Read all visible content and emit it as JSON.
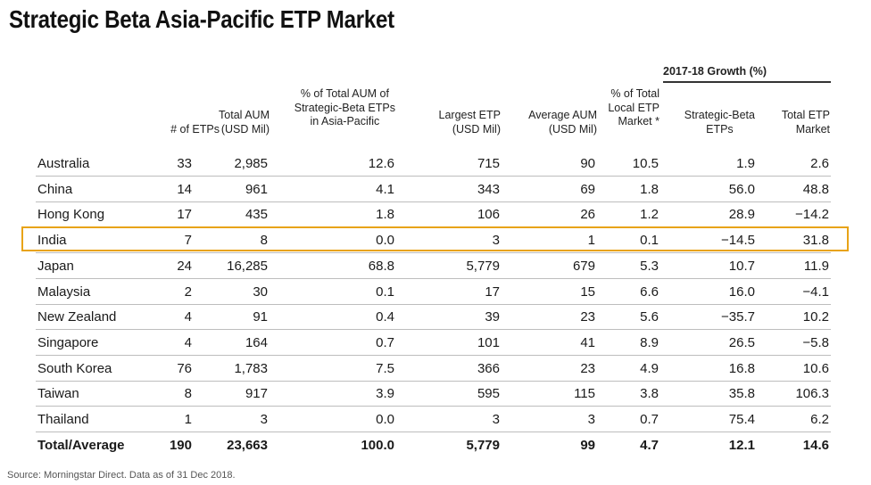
{
  "chart_data": {
    "type": "table",
    "title": "Strategic Beta Asia-Pacific ETP Market",
    "group_header": "2017-18 Growth (%)",
    "columns": [
      "",
      "# of ETPs",
      "Total AUM\n(USD Mil)",
      "% of Total AUM of\nStrategic-Beta ETPs\nin Asia-Pacific",
      "Largest ETP\n(USD Mil)",
      "Average AUM\n(USD Mil)",
      "% of Total\nLocal ETP\nMarket *",
      "Strategic-Beta\nETPs",
      "Total ETP\nMarket"
    ],
    "rows": [
      [
        "Australia",
        "33",
        "2,985",
        "12.6",
        "715",
        "90",
        "10.5",
        "1.9",
        "2.6"
      ],
      [
        "China",
        "14",
        "961",
        "4.1",
        "343",
        "69",
        "1.8",
        "56.0",
        "48.8"
      ],
      [
        "Hong Kong",
        "17",
        "435",
        "1.8",
        "106",
        "26",
        "1.2",
        "28.9",
        "−14.2"
      ],
      [
        "India",
        "7",
        "8",
        "0.0",
        "3",
        "1",
        "0.1",
        "−14.5",
        "31.8"
      ],
      [
        "Japan",
        "24",
        "16,285",
        "68.8",
        "5,779",
        "679",
        "5.3",
        "10.7",
        "11.9"
      ],
      [
        "Malaysia",
        "2",
        "30",
        "0.1",
        "17",
        "15",
        "6.6",
        "16.0",
        "−4.1"
      ],
      [
        "New Zealand",
        "4",
        "91",
        "0.4",
        "39",
        "23",
        "5.6",
        "−35.7",
        "10.2"
      ],
      [
        "Singapore",
        "4",
        "164",
        "0.7",
        "101",
        "41",
        "8.9",
        "26.5",
        "−5.8"
      ],
      [
        "South Korea",
        "76",
        "1,783",
        "7.5",
        "366",
        "23",
        "4.9",
        "16.8",
        "10.6"
      ],
      [
        "Taiwan",
        "8",
        "917",
        "3.9",
        "595",
        "115",
        "3.8",
        "35.8",
        "106.3"
      ],
      [
        "Thailand",
        "1",
        "3",
        "0.0",
        "3",
        "3",
        "0.7",
        "75.4",
        "6.2"
      ]
    ],
    "total_row": [
      "Total/Average",
      "190",
      "23,663",
      "100.0",
      "5,779",
      "99",
      "4.7",
      "12.1",
      "14.6"
    ],
    "highlighted_row": "India"
  },
  "source": "Source: Morningstar Direct. Data as of 31 Dec 2018.",
  "colors": {
    "highlight": "#e8a317",
    "rule": "#bdbdbd"
  }
}
